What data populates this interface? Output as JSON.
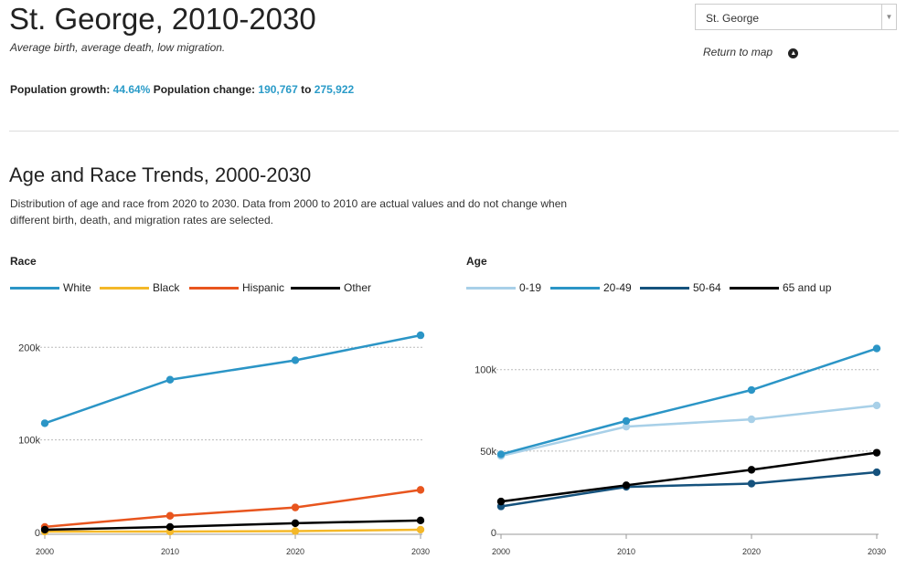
{
  "header": {
    "title": "St. George, 2010-2030",
    "subtitle": "Average birth, average death, low migration.",
    "growth_label": "Population growth:",
    "growth_value": "44.64%",
    "change_label": "Population change:",
    "change_from": "190,767",
    "change_to_word": "to",
    "change_to": "275,922"
  },
  "region_select": {
    "value": "St. George",
    "arrow": "▼"
  },
  "return_link": {
    "label": "Return to map",
    "icon": "chevron-up-circle"
  },
  "section": {
    "title": "Age and Race Trends, 2000-2030",
    "description": "Distribution of age and race from 2020 to 2030. Data from 2000 to 2010 are actual values and do not change when different birth, death, and migration rates are selected."
  },
  "chart_data": [
    {
      "type": "line",
      "title": "Race",
      "x": [
        2000,
        2010,
        2020,
        2030
      ],
      "x_ticks": [
        "2000",
        "2010",
        "2020",
        "2030"
      ],
      "y_ticks": [
        {
          "v": 0,
          "l": "0"
        },
        {
          "v": 100000,
          "l": "100k"
        },
        {
          "v": 200000,
          "l": "200k"
        }
      ],
      "ylim": [
        0,
        220000
      ],
      "grid": true,
      "legend": "top-left",
      "series": [
        {
          "name": "White",
          "color": "#2b95c6",
          "values": [
            118000,
            165000,
            186000,
            213000
          ]
        },
        {
          "name": "Black",
          "color": "#f4b829",
          "values": [
            1000,
            1000,
            1500,
            3000
          ]
        },
        {
          "name": "Hispanic",
          "color": "#e8551e",
          "values": [
            6000,
            18000,
            27000,
            46000
          ]
        },
        {
          "name": "Other",
          "color": "#000000",
          "values": [
            3000,
            6000,
            10000,
            13000
          ]
        }
      ]
    },
    {
      "type": "line",
      "title": "Age",
      "x": [
        2000,
        2010,
        2020,
        2030
      ],
      "x_ticks": [
        "2000",
        "2010",
        "2020",
        "2030"
      ],
      "y_ticks": [
        {
          "v": 0,
          "l": "0"
        },
        {
          "v": 50000,
          "l": "50k"
        },
        {
          "v": 100000,
          "l": "100k"
        }
      ],
      "ylim": [
        0,
        115000
      ],
      "grid": true,
      "legend": "top-left",
      "series": [
        {
          "name": "0-19",
          "color": "#a8d0e8",
          "values": [
            47000,
            65000,
            69500,
            78000
          ]
        },
        {
          "name": "20-49",
          "color": "#2b95c6",
          "values": [
            48000,
            68500,
            87500,
            113000
          ]
        },
        {
          "name": "50-64",
          "color": "#15527d",
          "values": [
            16000,
            28000,
            30000,
            37000
          ]
        },
        {
          "name": "65 and up",
          "color": "#000000",
          "values": [
            19000,
            29000,
            38500,
            49000
          ]
        }
      ]
    }
  ]
}
